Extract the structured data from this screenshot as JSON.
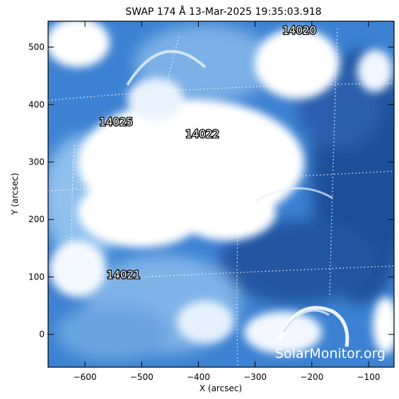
{
  "title": "SWAP 174 Å 13-Mar-2025 19:35:03.918",
  "x_axis": {
    "label": "X (arcsec)",
    "range": [
      -665,
      -55
    ],
    "ticks": [
      -600,
      -500,
      -400,
      -300,
      -200,
      -100
    ]
  },
  "y_axis": {
    "label": "Y (arcsec)",
    "range": [
      -57,
      545
    ],
    "ticks": [
      0,
      100,
      200,
      300,
      400,
      500
    ]
  },
  "active_regions": [
    {
      "id": "ar-14020",
      "label": "14020",
      "x": -222,
      "y": 530
    },
    {
      "id": "ar-14025",
      "label": "14025",
      "x": -545,
      "y": 371
    },
    {
      "id": "ar-14022",
      "label": "14022",
      "x": -393,
      "y": 350
    },
    {
      "id": "ar-14021",
      "label": "14021",
      "x": -532,
      "y": 105
    }
  ],
  "watermark": "SolarMonitor.org",
  "colors": {
    "background": "#ffffff",
    "deep_blue": "#1f4f9a",
    "mid_blue": "#3a7fd0",
    "light_blue": "#8fc0ee",
    "bright": "#ffffff"
  }
}
